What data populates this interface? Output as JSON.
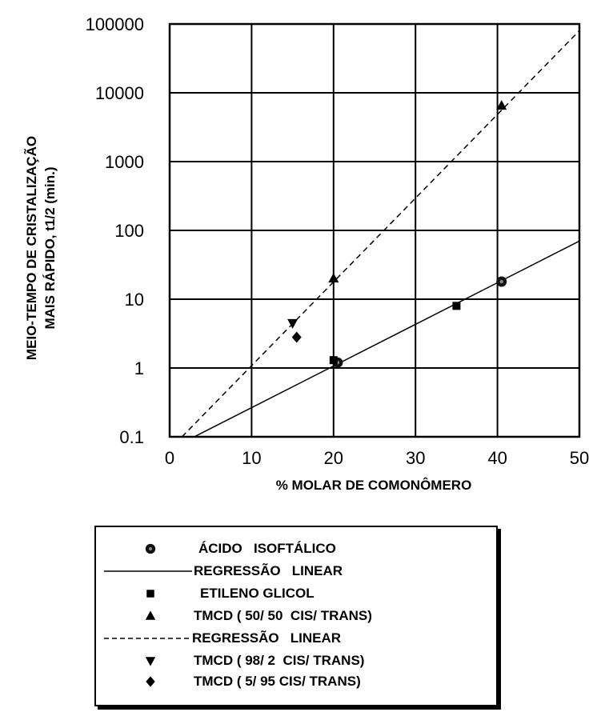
{
  "chart_data": {
    "type": "scatter",
    "title": "",
    "xlabel": "% MOLAR DE  COMONÔMERO",
    "ylabel": [
      "MEIO-TEMPO DE CRISTALIZAÇÃO",
      "MAIS RÁPIDO, t1/2 (min.)"
    ],
    "xlim": [
      0,
      50
    ],
    "ylim": [
      0.1,
      100000
    ],
    "yscale": "log",
    "grid": true,
    "x_ticks": [
      "0",
      "10",
      "20",
      "30",
      "40",
      "50"
    ],
    "y_ticks": [
      "0.1",
      "1",
      "10",
      "100",
      "1000",
      "10000",
      "100000"
    ],
    "legend_position": "below",
    "series": [
      {
        "name": "ÁCIDO   ISOFTÁLICO",
        "marker": "circle",
        "points": [
          [
            20.5,
            1.2
          ],
          [
            40.5,
            18
          ]
        ]
      },
      {
        "name": "REGRESSÃO   LINEAR",
        "style": "solid-line",
        "points": [
          [
            3,
            0.1
          ],
          [
            50,
            70
          ]
        ]
      },
      {
        "name": "ETILENO GLICOL",
        "marker": "square",
        "points": [
          [
            20,
            1.3
          ],
          [
            35,
            8
          ]
        ]
      },
      {
        "name": "TMCD ( 50/ 50  CIS/ TRANS)",
        "marker": "triangle",
        "points": [
          [
            20,
            20
          ],
          [
            40.5,
            6500
          ]
        ]
      },
      {
        "name": "REGRESSÃO   LINEAR",
        "style": "dashed-line",
        "points": [
          [
            1.5,
            0.1
          ],
          [
            50,
            80000
          ]
        ]
      },
      {
        "name": "TMCD ( 98/ 2  CIS/ TRANS)",
        "marker": "triangle-down",
        "points": [
          [
            15,
            4.5
          ]
        ]
      },
      {
        "name": "TMCD ( 5/ 95 CIS/ TRANS)",
        "marker": "diamond",
        "points": [
          [
            15.5,
            2.8
          ]
        ]
      }
    ]
  }
}
